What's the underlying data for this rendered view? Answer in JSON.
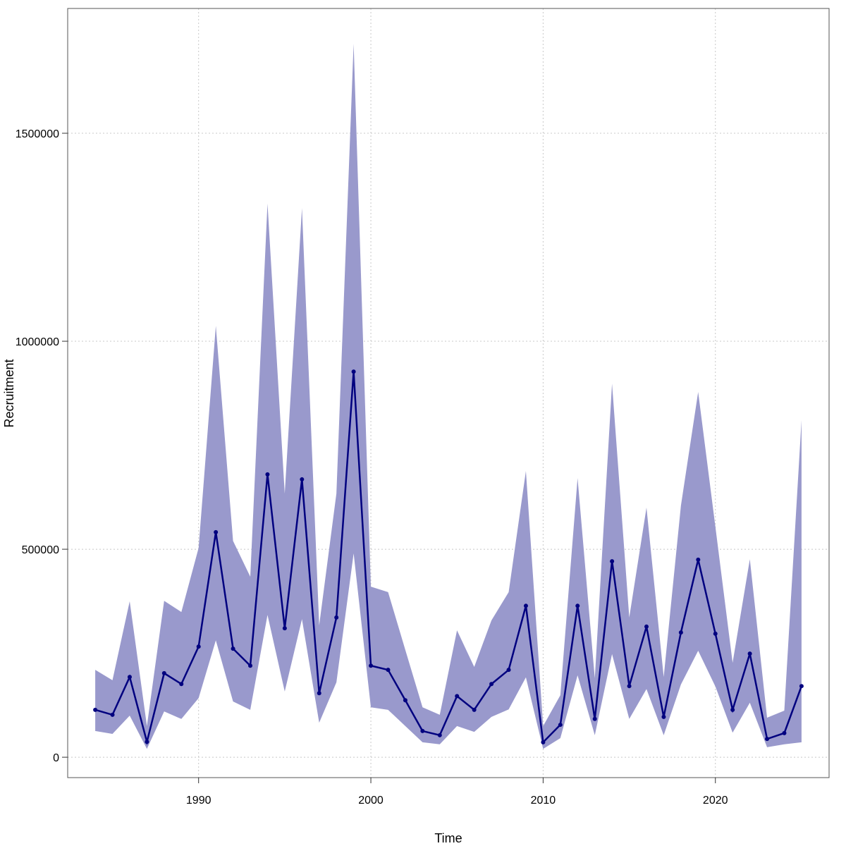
{
  "chart_data": {
    "type": "line",
    "title": "",
    "xlabel": "Time",
    "ylabel": "Recruitment",
    "xlim": [
      1982.4,
      2026.6
    ],
    "ylim": [
      -49000,
      1800000
    ],
    "grid": true,
    "x_ticks": [
      1990,
      2000,
      2010,
      2020
    ],
    "x_tick_labels": [
      "1990",
      "2000",
      "2010",
      "2020"
    ],
    "y_ticks": [
      0,
      500000,
      1000000,
      1500000
    ],
    "y_tick_labels": [
      "0",
      "500000",
      "1000000",
      "1500000"
    ],
    "colors": {
      "line": "#00007f",
      "band": "#9999cc",
      "grid": "#c8c8c8"
    },
    "x": [
      1984,
      1985,
      1986,
      1987,
      1988,
      1989,
      1990,
      1991,
      1992,
      1993,
      1994,
      1995,
      1996,
      1997,
      1998,
      1999,
      2000,
      2001,
      2002,
      2003,
      2004,
      2005,
      2006,
      2007,
      2008,
      2009,
      2010,
      2011,
      2012,
      2013,
      2014,
      2015,
      2016,
      2017,
      2018,
      2019,
      2020,
      2021,
      2022,
      2023,
      2024,
      2025
    ],
    "series": [
      {
        "name": "Recruitment",
        "values": [
          114000,
          102000,
          193000,
          37000,
          202000,
          176000,
          266000,
          541000,
          261000,
          220000,
          680000,
          310000,
          668000,
          154000,
          336000,
          927000,
          220000,
          210000,
          137000,
          63000,
          53000,
          147000,
          114000,
          176000,
          210000,
          364000,
          36000,
          78000,
          364000,
          92000,
          471000,
          171000,
          314000,
          97000,
          300000,
          475000,
          297000,
          114000,
          249000,
          44000,
          58000,
          171000
        ]
      },
      {
        "name": "Upper",
        "values": [
          210000,
          185000,
          375000,
          75000,
          376000,
          349000,
          503000,
          1037000,
          520000,
          434000,
          1331000,
          634000,
          1320000,
          317000,
          634000,
          1715000,
          410000,
          397000,
          258000,
          120000,
          102000,
          305000,
          217000,
          329000,
          397000,
          688000,
          75000,
          149000,
          671000,
          190000,
          898000,
          336000,
          600000,
          193000,
          605000,
          878000,
          554000,
          227000,
          476000,
          95000,
          112000,
          810000
        ]
      },
      {
        "name": "Lower",
        "values": [
          63000,
          56000,
          100000,
          20000,
          110000,
          92000,
          142000,
          281000,
          134000,
          114000,
          342000,
          158000,
          332000,
          83000,
          180000,
          490000,
          120000,
          114000,
          75000,
          36000,
          31000,
          75000,
          61000,
          97000,
          115000,
          192000,
          20000,
          46000,
          197000,
          53000,
          248000,
          92000,
          164000,
          53000,
          175000,
          256000,
          170000,
          59000,
          131000,
          24000,
          31000,
          36000
        ]
      }
    ]
  }
}
